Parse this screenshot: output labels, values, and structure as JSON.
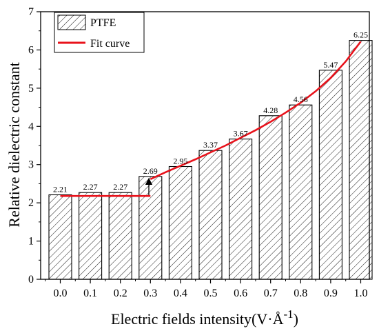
{
  "chart_data": {
    "type": "bar",
    "categories": [
      "0.0",
      "0.1",
      "0.2",
      "0.3",
      "0.4",
      "0.5",
      "0.6",
      "0.7",
      "0.8",
      "0.9",
      "1.0"
    ],
    "series": [
      {
        "name": "PTFE",
        "values": [
          2.21,
          2.27,
          2.27,
          2.69,
          2.95,
          3.37,
          3.67,
          4.28,
          4.56,
          5.47,
          6.25
        ]
      }
    ],
    "data_labels": [
      "2.21",
      "2.27",
      "2.27",
      "2.69",
      "2.95",
      "3.37",
      "3.67",
      "4.28",
      "4.56",
      "5.47",
      "6.25"
    ],
    "fit_curve": {
      "name": "Fit curve",
      "color": "#e8121b",
      "segments": [
        {
          "x": [
            0.0,
            0.3
          ],
          "y": [
            2.18,
            2.18
          ]
        },
        {
          "x": [
            0.3,
            0.35,
            0.4,
            0.45,
            0.5,
            0.55,
            0.6,
            0.65,
            0.7,
            0.75,
            0.8,
            0.85,
            0.9,
            0.95,
            1.0
          ],
          "y": [
            2.62,
            2.8,
            2.97,
            3.14,
            3.32,
            3.5,
            3.7,
            3.9,
            4.12,
            4.36,
            4.62,
            4.92,
            5.27,
            5.7,
            6.22
          ]
        }
      ]
    },
    "xlabel": "Electric fields intensity(V·Å",
    "xlabel_superscript": "-1",
    "xlabel_suffix": ")",
    "ylabel": "Relative dielectric constant",
    "ylim": [
      0,
      7
    ],
    "yticks": [
      "0",
      "1",
      "2",
      "3",
      "4",
      "5",
      "6",
      "7"
    ],
    "bar_pattern": "diagonal-hatch",
    "legend_position": "top-left",
    "grid": false
  }
}
